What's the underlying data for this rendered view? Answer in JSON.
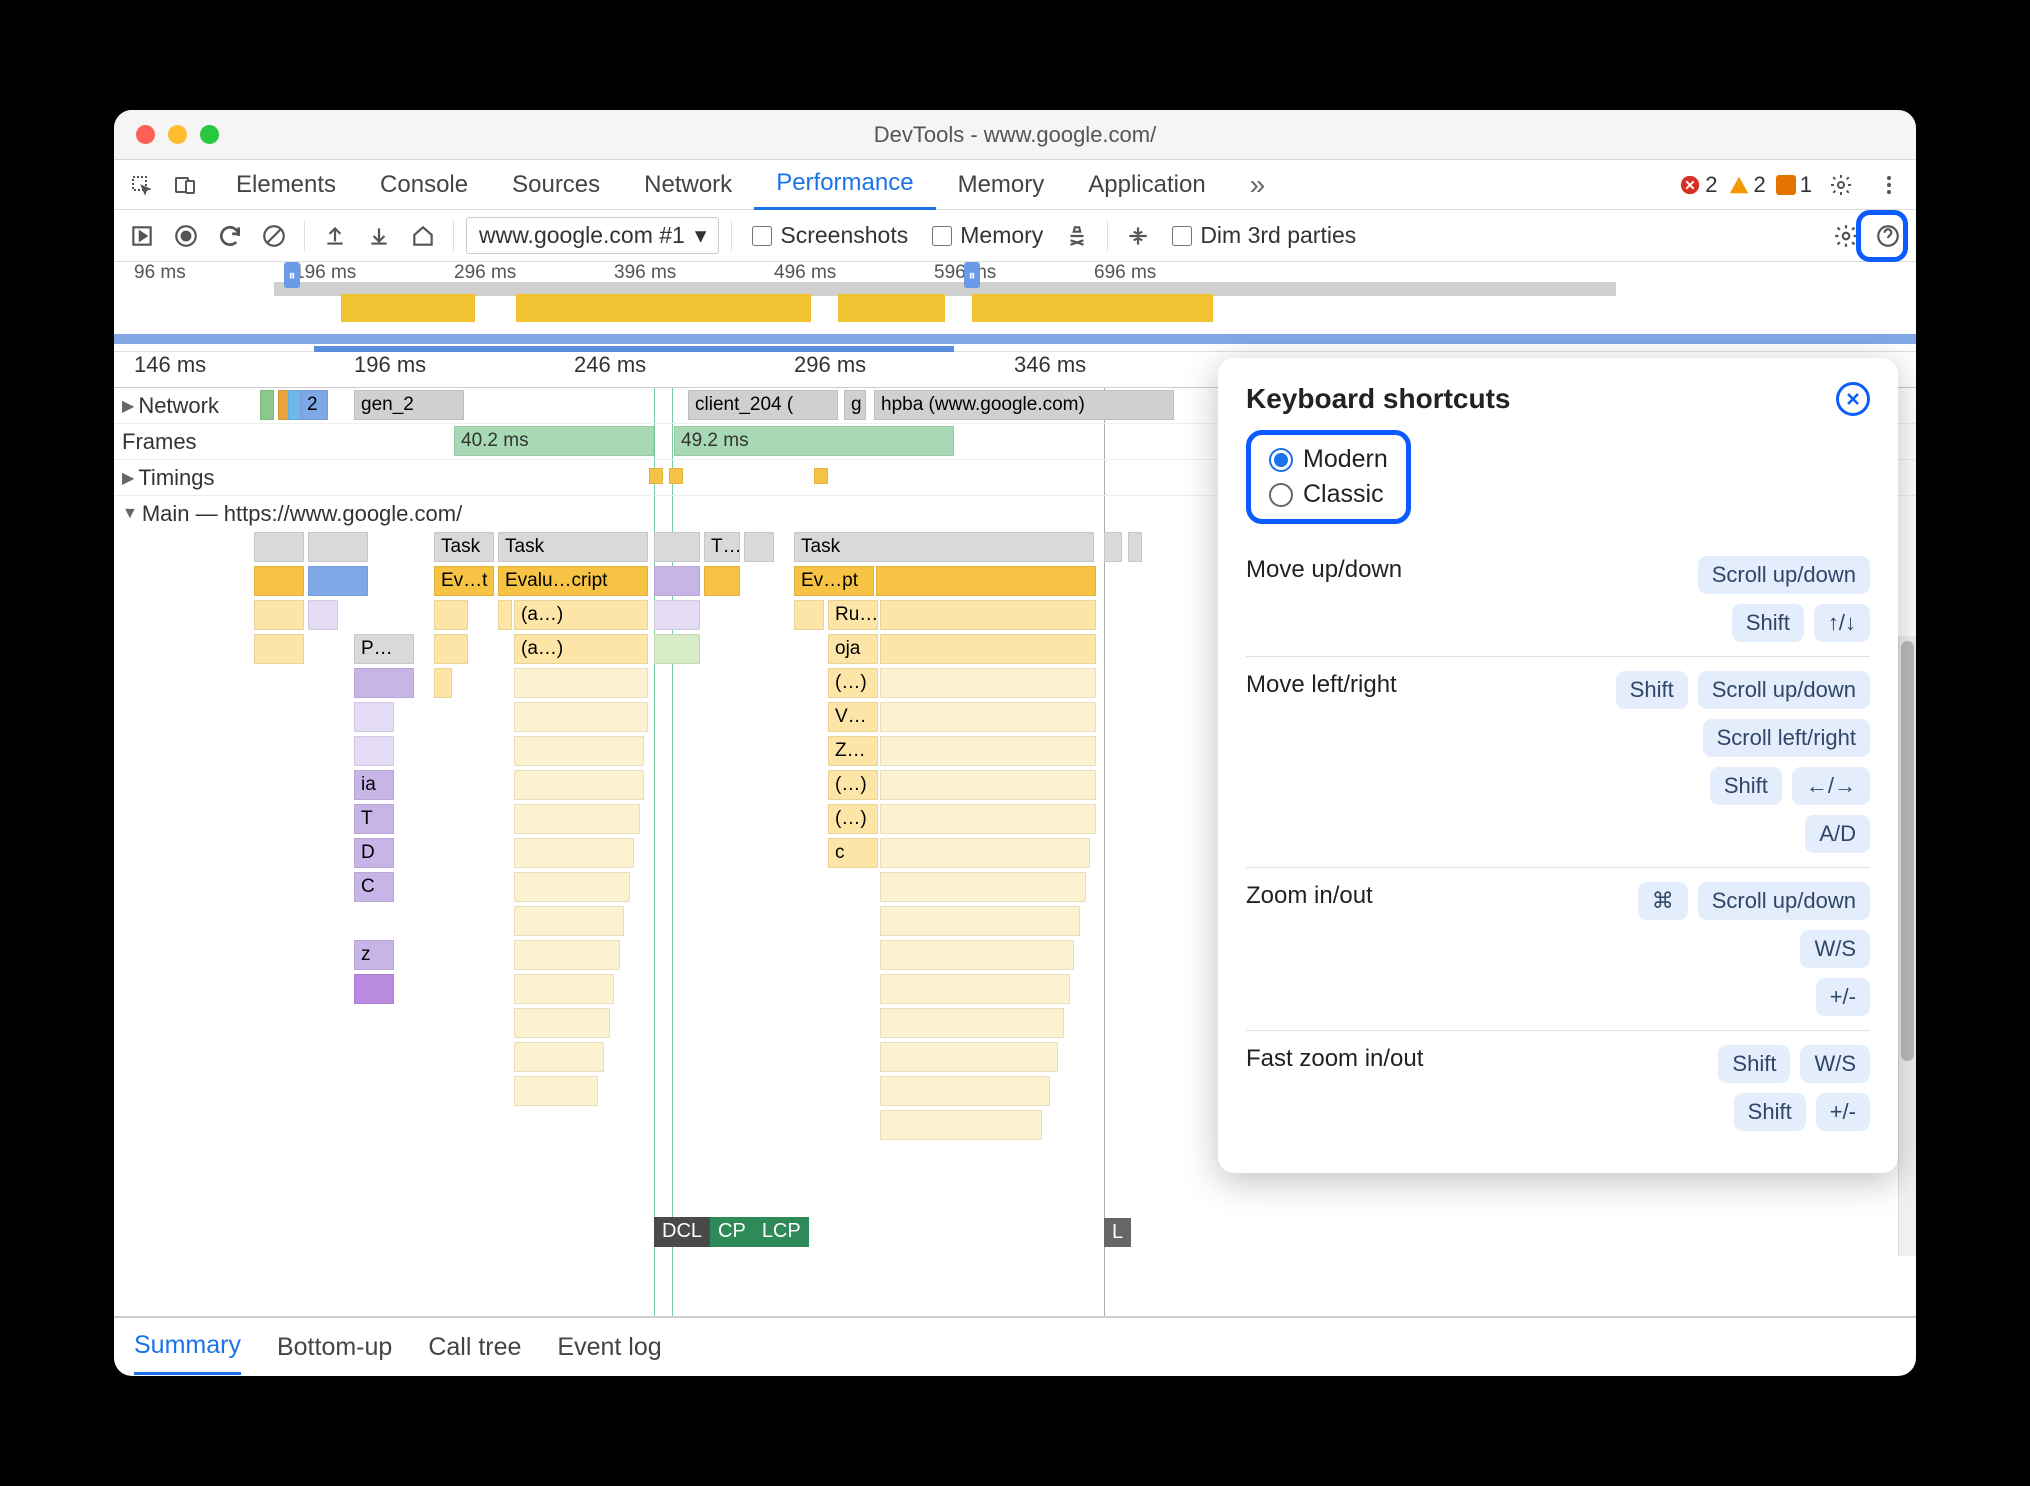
{
  "window": {
    "title": "DevTools - www.google.com/"
  },
  "colors": {
    "accent": "#1a73e8",
    "highlight": "#0a5cff",
    "task_gray": "#d9d9d9",
    "script_yellow": "#f6c344",
    "fn_lyellow": "#fce5a6",
    "fn_pyellow": "#fdf2d0",
    "purple": "#c8b5e8",
    "lpurple": "#e4dcf5",
    "blue": "#7fa8e8",
    "frame_green": "#a6d9b4",
    "key_bg": "#e3edfb",
    "dcl_bg": "#4a4a4a",
    "lcp_bg": "#2e8b57"
  },
  "tabs": [
    "Elements",
    "Console",
    "Sources",
    "Network",
    "Performance",
    "Memory",
    "Application"
  ],
  "tabs_active": "Performance",
  "badges": {
    "error": "2",
    "warn": "2",
    "issue": "1"
  },
  "subtool": {
    "url": "www.google.com #1",
    "screenshots": "Screenshots",
    "memory": "Memory",
    "dim": "Dim 3rd parties"
  },
  "overview": {
    "ticks": [
      "96 ms",
      "196 ms",
      "296 ms",
      "396 ms",
      "496 ms",
      "596 ms",
      "696 ms"
    ]
  },
  "ruler": [
    "146 ms",
    "196 ms",
    "246 ms",
    "296 ms",
    "346 ms"
  ],
  "tracks": {
    "network": {
      "label": "Network",
      "items": [
        "2",
        "gen_2",
        "client_204 (",
        "g",
        "hpba (www.google.com)"
      ]
    },
    "frames": {
      "label": "Frames",
      "items": [
        "40.2 ms",
        "49.2 ms"
      ]
    },
    "timings": {
      "label": "Timings"
    },
    "main": {
      "label": "Main — https://www.google.com/"
    }
  },
  "flame": {
    "row0": [
      "Task",
      "Task",
      "T…",
      "Task"
    ],
    "row1": [
      "Ev…t",
      "Evalu…cript",
      "Ev…pt"
    ],
    "row2": [
      "(a…)",
      "Ru…s"
    ],
    "row3": [
      "P…",
      "(a…)",
      "oja"
    ],
    "row4": [
      "(…)"
    ],
    "row5": [
      "V…"
    ],
    "row6": [
      "Z…"
    ],
    "row7": [
      "ia",
      "(…)"
    ],
    "row8": [
      "T",
      "(…)"
    ],
    "row9": [
      "D",
      "c"
    ],
    "row10": [
      "C"
    ],
    "row11": [
      "z"
    ]
  },
  "markers": {
    "dcl": "DCL",
    "cp": "CP",
    "lcp": "LCP",
    "l": "L"
  },
  "bottom_tabs": [
    "Summary",
    "Bottom-up",
    "Call tree",
    "Event log"
  ],
  "bottom_active": "Summary",
  "panel": {
    "title": "Keyboard shortcuts",
    "modes": [
      "Modern",
      "Classic"
    ],
    "mode_selected": "Modern",
    "rows": [
      {
        "label": "Move up/down",
        "lines": [
          [
            "Scroll up/down"
          ],
          [
            "Shift",
            "↑/↓"
          ]
        ]
      },
      {
        "label": "Move left/right",
        "lines": [
          [
            "Shift",
            "Scroll up/down"
          ],
          [
            "Scroll left/right"
          ],
          [
            "Shift",
            "←/→"
          ],
          [
            "A/D"
          ]
        ]
      },
      {
        "label": "Zoom in/out",
        "lines": [
          [
            "⌘",
            "Scroll up/down"
          ],
          [
            "W/S"
          ],
          [
            "+/-"
          ]
        ]
      },
      {
        "label": "Fast zoom in/out",
        "lines": [
          [
            "Shift",
            "W/S"
          ],
          [
            "Shift",
            "+/-"
          ]
        ]
      }
    ]
  }
}
